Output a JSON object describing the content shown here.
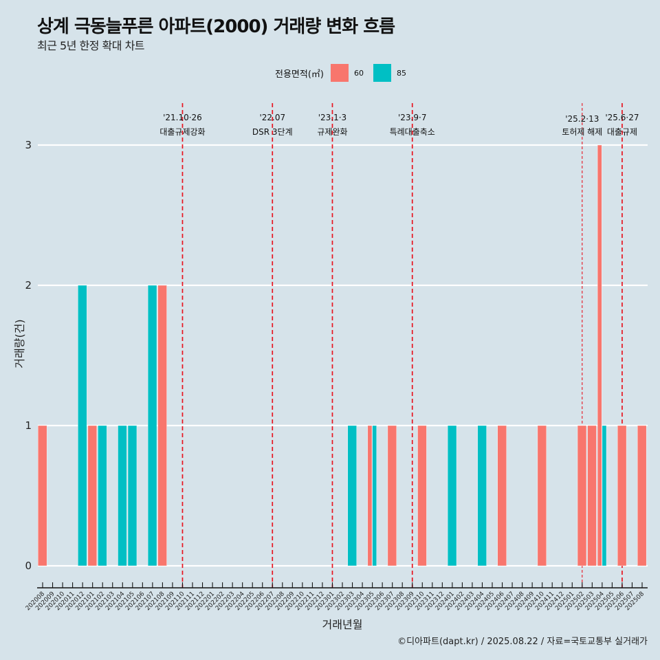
{
  "header": {
    "title": "상계 극동늘푸른 아파트(2000) 거래량 변화 흐름",
    "subtitle": "최근 5년 한정 확대 차트"
  },
  "legend": {
    "title": "전용면적(㎡)",
    "items": [
      {
        "label": "60",
        "color": "#f8766d"
      },
      {
        "label": "85",
        "color": "#00bfc4"
      }
    ]
  },
  "caption": "©디아파트(dapt.kr) / 2025.08.22 / 자료=국토교통부 실거래가",
  "chart_data": {
    "type": "bar",
    "title": "상계 극동늘푸른 아파트(2000) 거래량 변화 흐름",
    "subtitle": "최근 5년 한정 확대 차트",
    "xlabel": "거래년월",
    "ylabel": "거래량(건)",
    "ylim": [
      0,
      3
    ],
    "yticks": [
      0,
      1,
      2,
      3
    ],
    "grid": true,
    "legend_position": "top",
    "categories": [
      "202008",
      "202009",
      "202010",
      "202011",
      "202012",
      "202101",
      "202102",
      "202103",
      "202104",
      "202105",
      "202106",
      "202107",
      "202108",
      "202109",
      "202110",
      "202111",
      "202112",
      "202201",
      "202202",
      "202203",
      "202204",
      "202205",
      "202206",
      "202207",
      "202208",
      "202209",
      "202210",
      "202211",
      "202212",
      "202301",
      "202302",
      "202303",
      "202304",
      "202305",
      "202306",
      "202307",
      "202308",
      "202309",
      "202310",
      "202311",
      "202312",
      "202401",
      "202402",
      "202403",
      "202404",
      "202405",
      "202406",
      "202407",
      "202408",
      "202409",
      "202410",
      "202411",
      "202412",
      "202501",
      "202502",
      "202503",
      "202504",
      "202505",
      "202506",
      "202507",
      "202508"
    ],
    "series": [
      {
        "name": "60",
        "color": "#f8766d",
        "values": {
          "202008": 1,
          "202101": 1,
          "202108": 2,
          "202305": 1,
          "202307": 1,
          "202310": 1,
          "202406": 1,
          "202410": 1,
          "202502": 1,
          "202503": 1,
          "202504": 3,
          "202506": 1,
          "202508": 1
        }
      },
      {
        "name": "85",
        "color": "#00bfc4",
        "values": {
          "202012": 2,
          "202102": 1,
          "202104": 1,
          "202105": 1,
          "202107": 2,
          "202303": 1,
          "202305": 1,
          "202401": 1,
          "202404": 1,
          "202504": 1
        }
      }
    ],
    "events": [
      {
        "month": "202110",
        "date": "'21.10·26",
        "label": "대출규제강화",
        "style": "dashed"
      },
      {
        "month": "202207",
        "date": "'22.07",
        "label": "DSR 3단계",
        "style": "dashed"
      },
      {
        "month": "202301",
        "date": "'23.1·3",
        "label": "규제완화",
        "style": "dashed"
      },
      {
        "month": "202309",
        "date": "'23.9·7",
        "label": "특례대출축소",
        "style": "dashed"
      },
      {
        "month": "202502",
        "date": "'25.2·13",
        "label": "토허제 해제",
        "style": "thin-dashed"
      },
      {
        "month": "202506",
        "date": "'25.6·27",
        "label": "대출규제",
        "style": "dashed"
      }
    ]
  }
}
